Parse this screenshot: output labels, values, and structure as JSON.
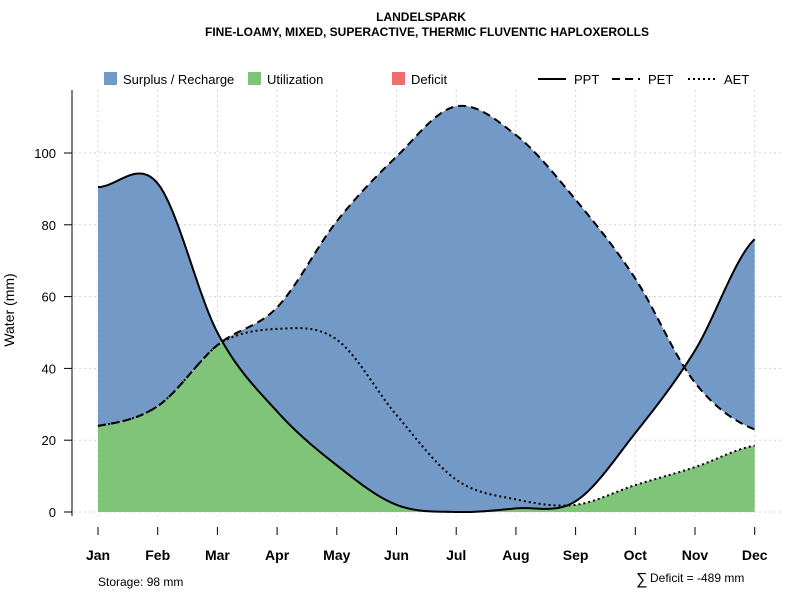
{
  "chart_data": {
    "type": "area",
    "title": "LANDELSPARK",
    "subtitle": "FINE-LOAMY, MIXED, SUPERACTIVE, THERMIC FLUVENTIC HAPLOXEROLLS",
    "xlabel": "",
    "ylabel": "Water (mm)",
    "ylim": [
      0,
      115
    ],
    "yticks": [
      "0",
      "20",
      "40",
      "60",
      "80",
      "100"
    ],
    "categories": [
      "Jan",
      "Feb",
      "Mar",
      "Apr",
      "May",
      "Jun",
      "Jul",
      "Aug",
      "Sep",
      "Oct",
      "Nov",
      "Dec"
    ],
    "grid": true,
    "series": [
      {
        "name": "PPT",
        "style": "solid",
        "values": [
          90.5,
          91.5,
          50,
          28,
          13,
          2,
          0,
          1,
          3,
          22,
          45,
          76
        ]
      },
      {
        "name": "PET",
        "style": "dashed",
        "values": [
          24,
          29.5,
          46.5,
          57,
          81,
          99,
          113,
          105,
          87,
          65,
          36,
          23
        ]
      },
      {
        "name": "AET",
        "style": "dotted",
        "values": [
          24,
          29.5,
          46.5,
          51,
          48,
          27,
          9,
          3.5,
          2,
          7.5,
          12.5,
          18.5
        ]
      }
    ],
    "legend": {
      "placement": "top",
      "entries": [
        {
          "label": "Surplus / Recharge",
          "kind": "fill",
          "color": "#7399C6"
        },
        {
          "label": "Utilization",
          "kind": "fill",
          "color": "#80C47A"
        },
        {
          "label": "Deficit",
          "kind": "fill",
          "color": "#EC6E6E"
        },
        {
          "label": "PPT",
          "kind": "line",
          "style": "solid"
        },
        {
          "label": "PET",
          "kind": "line",
          "style": "dashed"
        },
        {
          "label": "AET",
          "kind": "line",
          "style": "dotted"
        }
      ]
    },
    "colors": {
      "surplus": "#7399C6",
      "utilization": "#80C47A",
      "deficit": "#EC6E6E",
      "line": "#000000",
      "grid": "#D3D3D3"
    },
    "annotations": {
      "storage": "Storage: 98 mm",
      "deficit_symbol": "∑",
      "deficit": "Deficit = -489 mm"
    }
  }
}
